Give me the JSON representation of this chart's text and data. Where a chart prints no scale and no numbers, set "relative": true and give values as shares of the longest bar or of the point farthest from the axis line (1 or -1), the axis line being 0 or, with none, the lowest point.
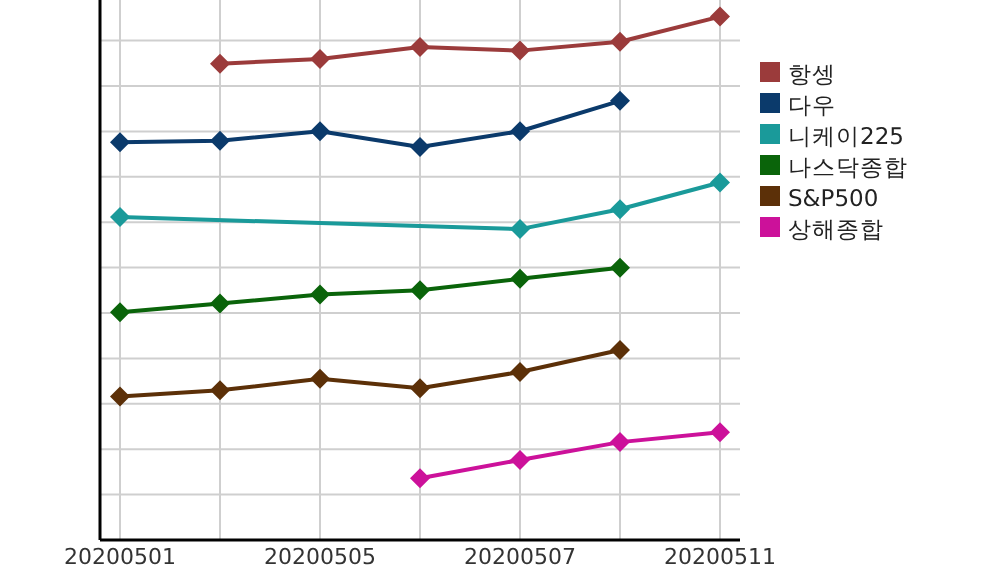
{
  "chart_data": {
    "type": "line",
    "relative": true,
    "marker": "diamond",
    "grid": true,
    "legend": "right",
    "categories": [
      "20200501",
      null,
      "20200505",
      null,
      "20200507",
      null,
      "20200511"
    ],
    "series": [
      {
        "name": "항셍",
        "color": "#9b3b3b",
        "values": [
          null,
          0.91,
          0.919,
          0.942,
          0.935,
          0.952,
          1
        ]
      },
      {
        "name": "다우",
        "color": "#0b3a6b",
        "values": [
          0.76,
          0.763,
          0.781,
          0.751,
          0.781,
          0.839,
          null
        ]
      },
      {
        "name": "니케이225",
        "color": "#1a9a9a",
        "values": [
          0.617,
          null,
          null,
          null,
          0.594,
          0.632,
          0.683
        ]
      },
      {
        "name": "나스닥종합",
        "color": "#0a640a",
        "values": [
          0.435,
          0.452,
          0.469,
          0.477,
          0.499,
          0.52,
          null
        ]
      },
      {
        "name": "S&P500",
        "color": "#5c3008",
        "values": [
          0.274,
          0.286,
          0.308,
          0.29,
          0.321,
          0.363,
          null
        ]
      },
      {
        "name": "상해종합",
        "color": "#cc119a",
        "values": [
          null,
          null,
          null,
          0.118,
          0.153,
          0.187,
          0.206
        ]
      }
    ]
  }
}
